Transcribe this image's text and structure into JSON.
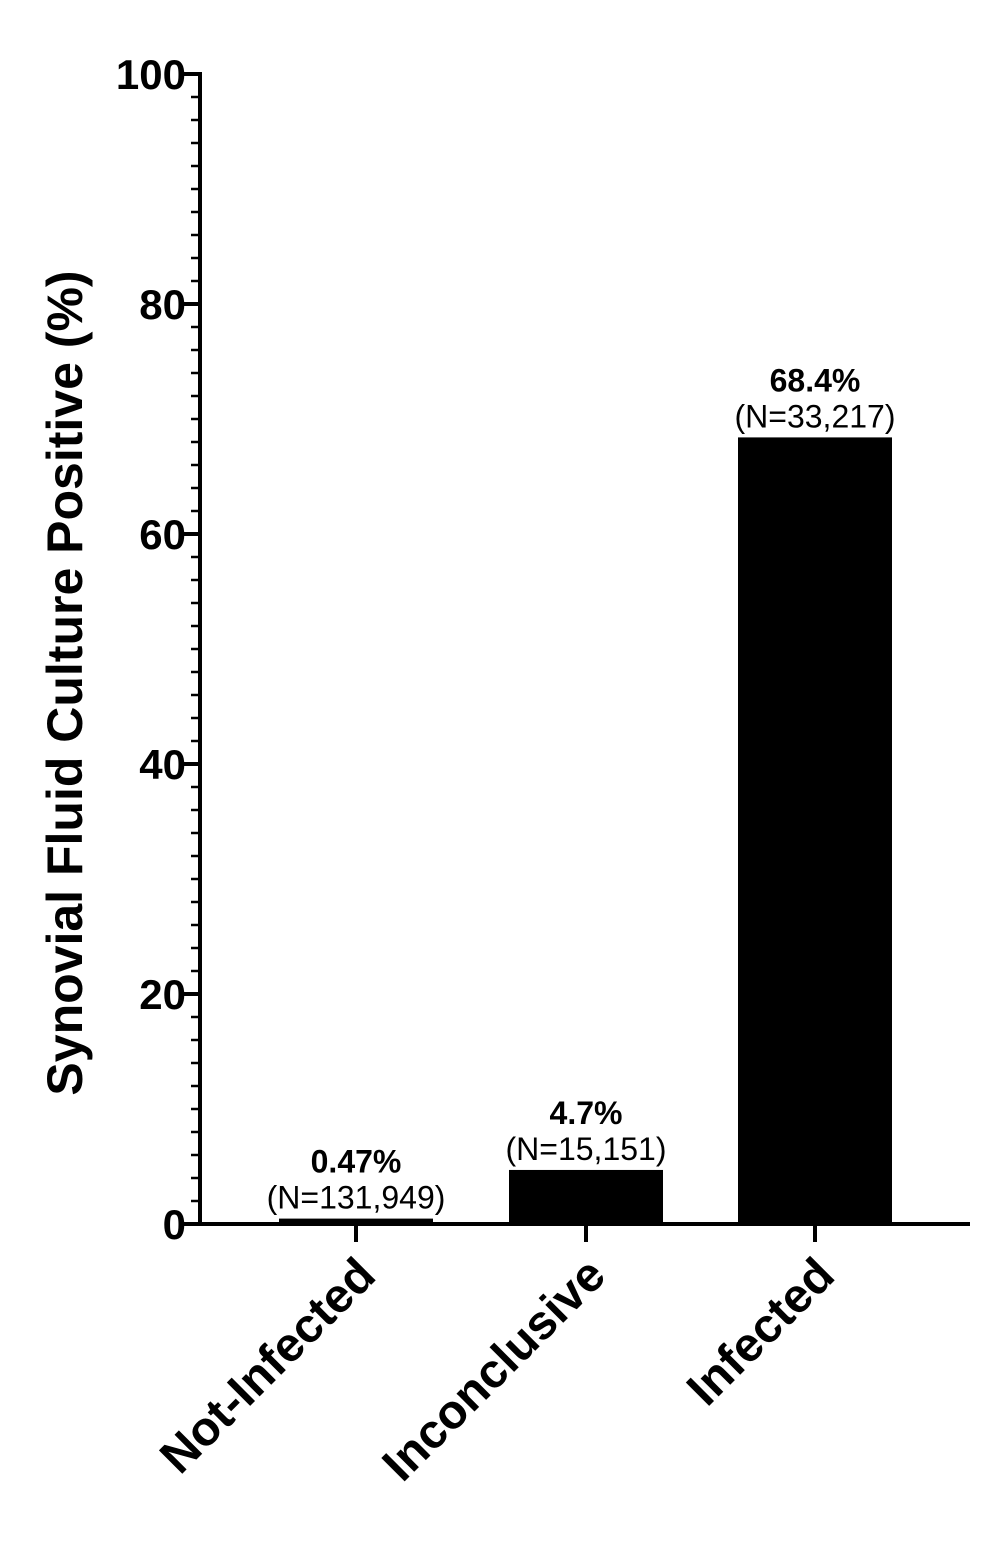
{
  "chart_data": {
    "type": "bar",
    "title": "",
    "xlabel": "",
    "ylabel": "Synovial Fluid Culture Positive (%)",
    "ylim": [
      0,
      100
    ],
    "yticks": [
      0,
      20,
      40,
      60,
      80,
      100
    ],
    "minor_ticks_per_major": 10,
    "grid": false,
    "legend": "none",
    "bar_color": "#000000",
    "categories": [
      "Not-Infected",
      "Inconclusive",
      "Infected"
    ],
    "values": [
      0.47,
      4.7,
      68.4
    ],
    "value_labels": [
      "0.47%",
      "4.7%",
      "68.4%"
    ],
    "n_labels": [
      "(N=131,949)",
      "(N=15,151)",
      "(N=33,217)"
    ]
  }
}
